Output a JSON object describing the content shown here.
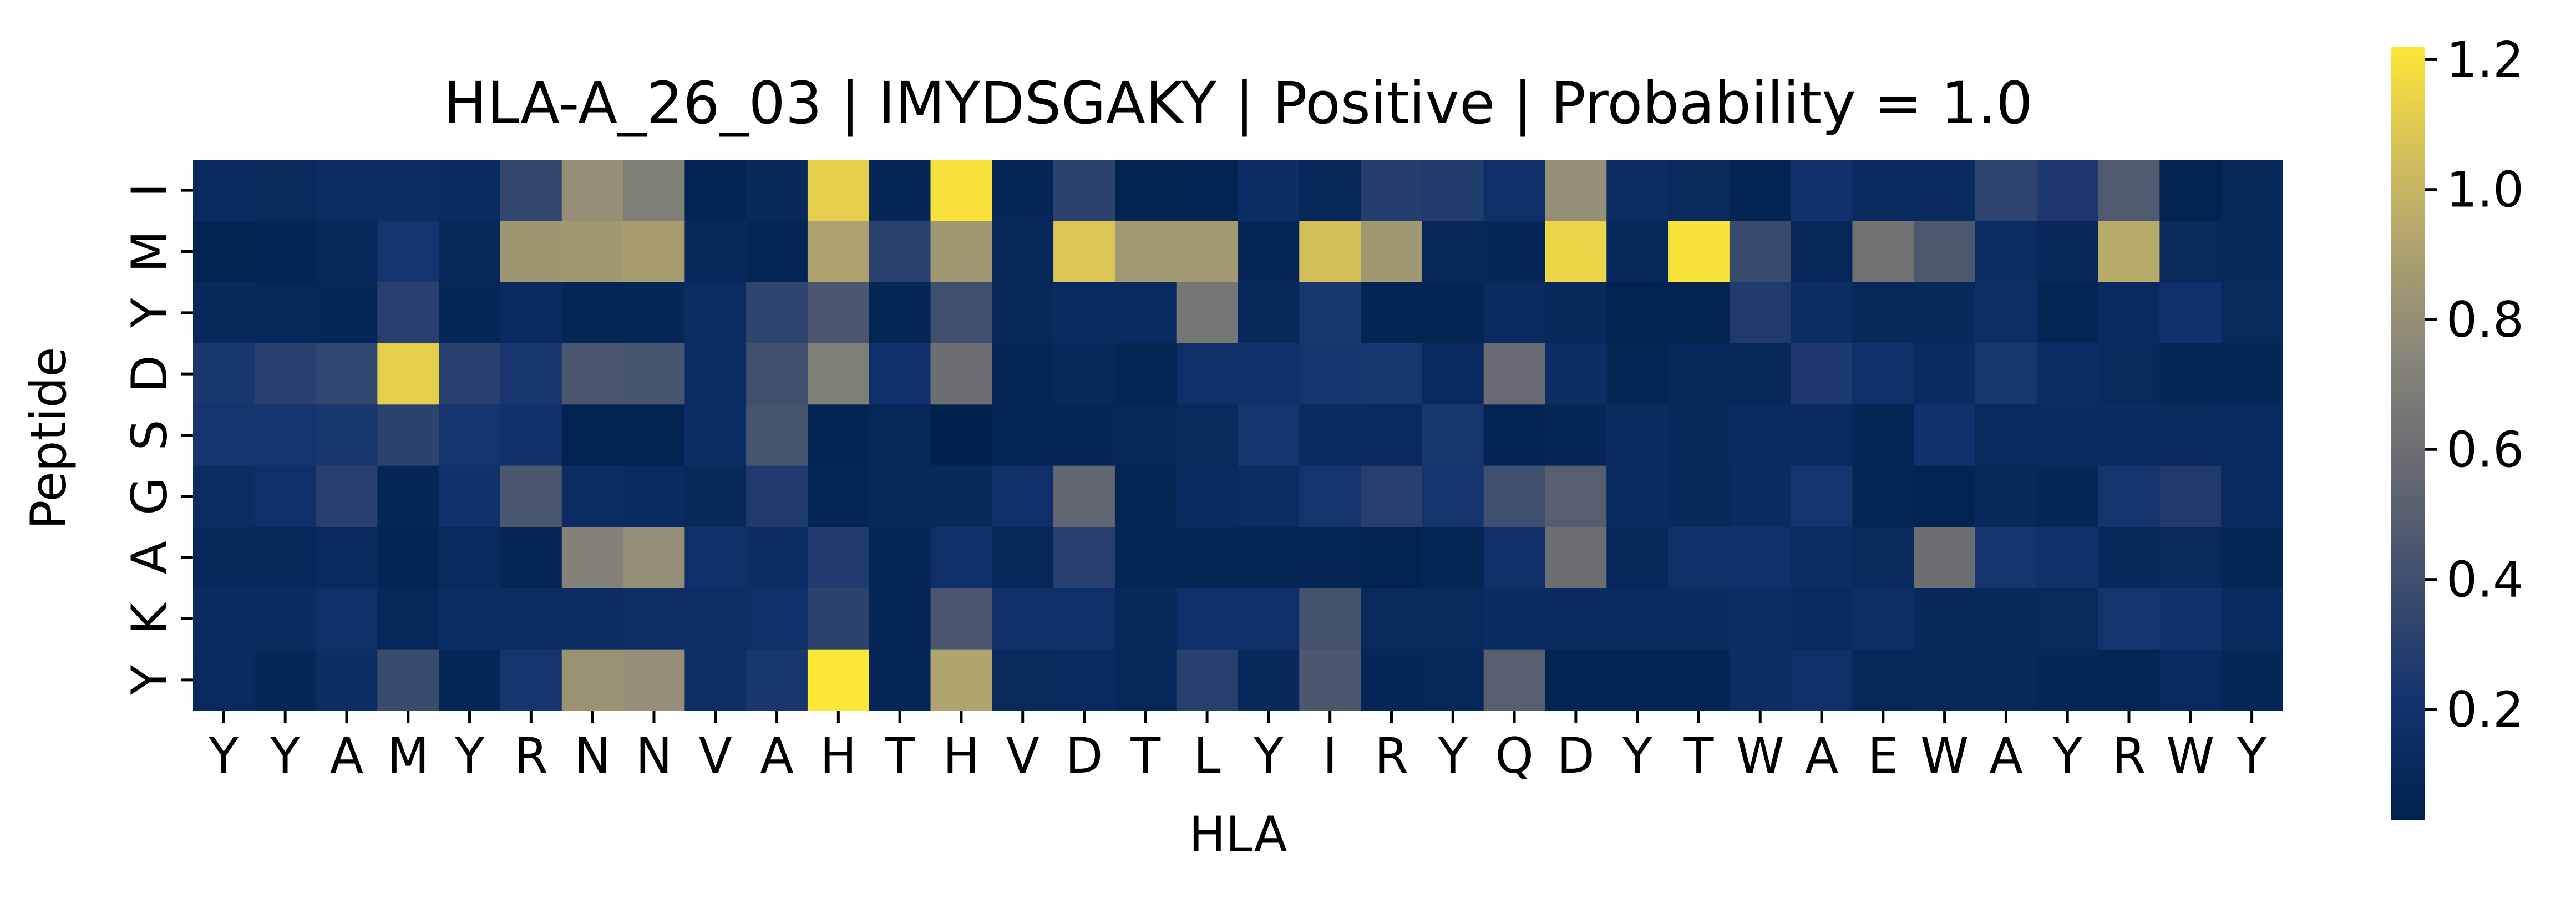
{
  "chart_data": {
    "type": "heatmap",
    "title": "HLA-A_26_03 | IMYDSGAKY | Positive | Probability = 1.0",
    "xlabel": "HLA",
    "ylabel": "Peptide",
    "x_tick_labels": [
      "Y",
      "Y",
      "A",
      "M",
      "Y",
      "R",
      "N",
      "N",
      "V",
      "A",
      "H",
      "T",
      "H",
      "V",
      "D",
      "T",
      "L",
      "Y",
      "I",
      "R",
      "Y",
      "Q",
      "D",
      "Y",
      "T",
      "W",
      "A",
      "E",
      "W",
      "A",
      "Y",
      "R",
      "W",
      "Y"
    ],
    "y_tick_labels": [
      "I",
      "M",
      "Y",
      "D",
      "S",
      "G",
      "A",
      "K",
      "Y"
    ],
    "colormap": "cividis",
    "vmin": 0.03,
    "vmax": 1.22,
    "colorbar_ticks": [
      0.2,
      0.4,
      0.6,
      0.8,
      1.0,
      1.2
    ],
    "colorbar_tick_labels": [
      "0.2",
      "0.4",
      "0.6",
      "0.8",
      "1.0",
      "1.2"
    ],
    "values": [
      [
        0.12,
        0.11,
        0.14,
        0.15,
        0.13,
        0.35,
        0.8,
        0.7,
        0.06,
        0.1,
        1.12,
        0.08,
        1.2,
        0.08,
        0.32,
        0.04,
        0.05,
        0.15,
        0.09,
        0.29,
        0.27,
        0.17,
        0.8,
        0.14,
        0.11,
        0.06,
        0.2,
        0.12,
        0.12,
        0.33,
        0.25,
        0.47,
        0.04,
        0.1
      ],
      [
        0.04,
        0.05,
        0.1,
        0.22,
        0.1,
        0.84,
        0.85,
        0.88,
        0.1,
        0.07,
        0.9,
        0.31,
        0.85,
        0.1,
        1.08,
        0.86,
        0.86,
        0.08,
        1.05,
        0.85,
        0.09,
        0.08,
        1.15,
        0.1,
        1.2,
        0.38,
        0.09,
        0.62,
        0.46,
        0.14,
        0.1,
        0.95,
        0.11,
        0.1
      ],
      [
        0.1,
        0.09,
        0.08,
        0.3,
        0.08,
        0.12,
        0.07,
        0.08,
        0.14,
        0.33,
        0.45,
        0.07,
        0.4,
        0.1,
        0.12,
        0.13,
        0.65,
        0.1,
        0.24,
        0.06,
        0.06,
        0.12,
        0.1,
        0.04,
        0.04,
        0.26,
        0.15,
        0.1,
        0.1,
        0.16,
        0.07,
        0.12,
        0.2,
        0.11
      ],
      [
        0.24,
        0.3,
        0.34,
        1.12,
        0.3,
        0.24,
        0.45,
        0.44,
        0.14,
        0.4,
        0.7,
        0.2,
        0.6,
        0.07,
        0.1,
        0.07,
        0.18,
        0.18,
        0.22,
        0.24,
        0.12,
        0.58,
        0.15,
        0.07,
        0.09,
        0.09,
        0.25,
        0.18,
        0.12,
        0.24,
        0.14,
        0.11,
        0.07,
        0.08
      ],
      [
        0.22,
        0.22,
        0.24,
        0.32,
        0.22,
        0.2,
        0.04,
        0.04,
        0.15,
        0.44,
        0.06,
        0.1,
        0.03,
        0.08,
        0.08,
        0.09,
        0.11,
        0.22,
        0.12,
        0.12,
        0.24,
        0.06,
        0.08,
        0.13,
        0.1,
        0.12,
        0.12,
        0.07,
        0.2,
        0.12,
        0.13,
        0.13,
        0.12,
        0.12
      ],
      [
        0.14,
        0.18,
        0.3,
        0.08,
        0.2,
        0.45,
        0.15,
        0.12,
        0.1,
        0.26,
        0.07,
        0.1,
        0.1,
        0.17,
        0.55,
        0.07,
        0.12,
        0.14,
        0.22,
        0.3,
        0.22,
        0.4,
        0.5,
        0.12,
        0.1,
        0.13,
        0.22,
        0.07,
        0.05,
        0.1,
        0.08,
        0.22,
        0.27,
        0.12
      ],
      [
        0.09,
        0.09,
        0.12,
        0.06,
        0.12,
        0.07,
        0.72,
        0.8,
        0.18,
        0.15,
        0.26,
        0.08,
        0.18,
        0.1,
        0.3,
        0.07,
        0.07,
        0.07,
        0.07,
        0.04,
        0.07,
        0.18,
        0.6,
        0.09,
        0.18,
        0.2,
        0.14,
        0.11,
        0.6,
        0.22,
        0.18,
        0.1,
        0.11,
        0.07
      ],
      [
        0.13,
        0.13,
        0.17,
        0.09,
        0.14,
        0.14,
        0.15,
        0.16,
        0.16,
        0.18,
        0.32,
        0.08,
        0.45,
        0.18,
        0.18,
        0.1,
        0.18,
        0.17,
        0.42,
        0.11,
        0.11,
        0.13,
        0.13,
        0.12,
        0.13,
        0.15,
        0.12,
        0.16,
        0.1,
        0.1,
        0.11,
        0.22,
        0.2,
        0.13
      ],
      [
        0.12,
        0.08,
        0.15,
        0.38,
        0.08,
        0.22,
        0.82,
        0.8,
        0.16,
        0.24,
        1.22,
        0.08,
        0.92,
        0.11,
        0.12,
        0.09,
        0.3,
        0.1,
        0.45,
        0.08,
        0.09,
        0.5,
        0.05,
        0.06,
        0.06,
        0.15,
        0.18,
        0.09,
        0.1,
        0.1,
        0.08,
        0.07,
        0.12,
        0.08
      ]
    ]
  }
}
